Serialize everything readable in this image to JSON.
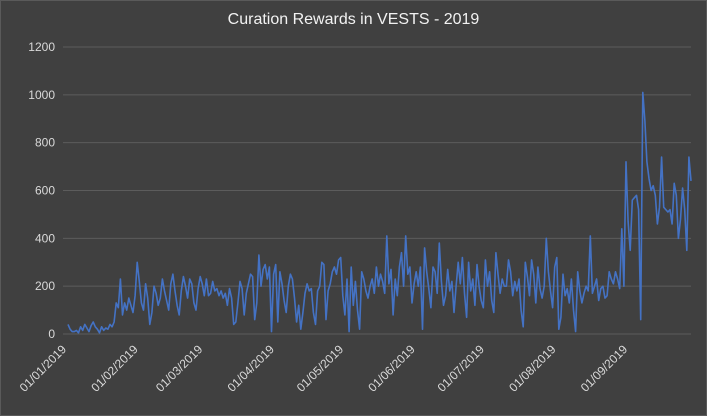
{
  "chart_data": {
    "type": "line",
    "title": "Curation Rewards in VESTS - 2019",
    "xlabel": "",
    "ylabel": "",
    "ylim": [
      0,
      1200
    ],
    "yticks": [
      0,
      200,
      400,
      600,
      800,
      1000,
      1200
    ],
    "xticks": [
      "01/01/2019",
      "01/02/2019",
      "01/03/2019",
      "01/04/2019",
      "01/05/2019",
      "01/06/2019",
      "01/07/2019",
      "01/08/2019",
      "01/09/2019"
    ],
    "grid": true,
    "legend": "none",
    "line_color": "#4472c4",
    "x_start": "01/01/2019",
    "x_end": "30/09/2019",
    "values": [
      40,
      20,
      10,
      10,
      15,
      5,
      30,
      15,
      40,
      25,
      10,
      35,
      50,
      30,
      20,
      5,
      30,
      15,
      25,
      20,
      40,
      30,
      50,
      130,
      110,
      230,
      80,
      130,
      100,
      150,
      120,
      90,
      160,
      300,
      220,
      130,
      100,
      210,
      150,
      40,
      90,
      200,
      170,
      120,
      150,
      230,
      180,
      140,
      100,
      210,
      250,
      180,
      120,
      80,
      180,
      240,
      200,
      150,
      230,
      210,
      130,
      100,
      190,
      240,
      210,
      160,
      230,
      160,
      170,
      220,
      180,
      190,
      160,
      180,
      150,
      170,
      120,
      190,
      150,
      40,
      50,
      130,
      220,
      190,
      80,
      170,
      210,
      250,
      240,
      60,
      130,
      330,
      200,
      270,
      290,
      230,
      280,
      10,
      250,
      290,
      50,
      260,
      210,
      140,
      90,
      200,
      250,
      230,
      150,
      50,
      120,
      20,
      90,
      170,
      210,
      180,
      190,
      90,
      40,
      180,
      200,
      300,
      290,
      60,
      180,
      210,
      260,
      280,
      250,
      310,
      320,
      160,
      80,
      230,
      10,
      280,
      120,
      220,
      100,
      20,
      260,
      230,
      180,
      150,
      200,
      230,
      170,
      280,
      200,
      250,
      220,
      170,
      410,
      210,
      270,
      80,
      230,
      160,
      280,
      340,
      200,
      410,
      250,
      280,
      130,
      210,
      260,
      200,
      280,
      20,
      360,
      260,
      190,
      110,
      280,
      260,
      170,
      380,
      220,
      120,
      160,
      270,
      180,
      220,
      90,
      200,
      300,
      210,
      320,
      170,
      70,
      300,
      180,
      230,
      120,
      290,
      200,
      140,
      110,
      310,
      200,
      260,
      140,
      90,
      340,
      250,
      170,
      230,
      200,
      200,
      310,
      260,
      160,
      220,
      180,
      230,
      100,
      30,
      300,
      240,
      160,
      310,
      250,
      130,
      280,
      190,
      150,
      200,
      400,
      260,
      180,
      110,
      280,
      320,
      20,
      70,
      250,
      160,
      190,
      130,
      230,
      100,
      10,
      260,
      180,
      130,
      170,
      200,
      180,
      410,
      170,
      200,
      230,
      140,
      190,
      200,
      150,
      160,
      260,
      230,
      210,
      260,
      230,
      190,
      440,
      200,
      720,
      470,
      350,
      560,
      570,
      580,
      520,
      60,
      1010,
      890,
      720,
      650,
      600,
      620,
      580,
      460,
      530,
      740,
      530,
      520,
      510,
      520,
      460,
      630,
      580,
      400,
      480,
      610,
      520,
      350,
      740,
      640
    ]
  }
}
